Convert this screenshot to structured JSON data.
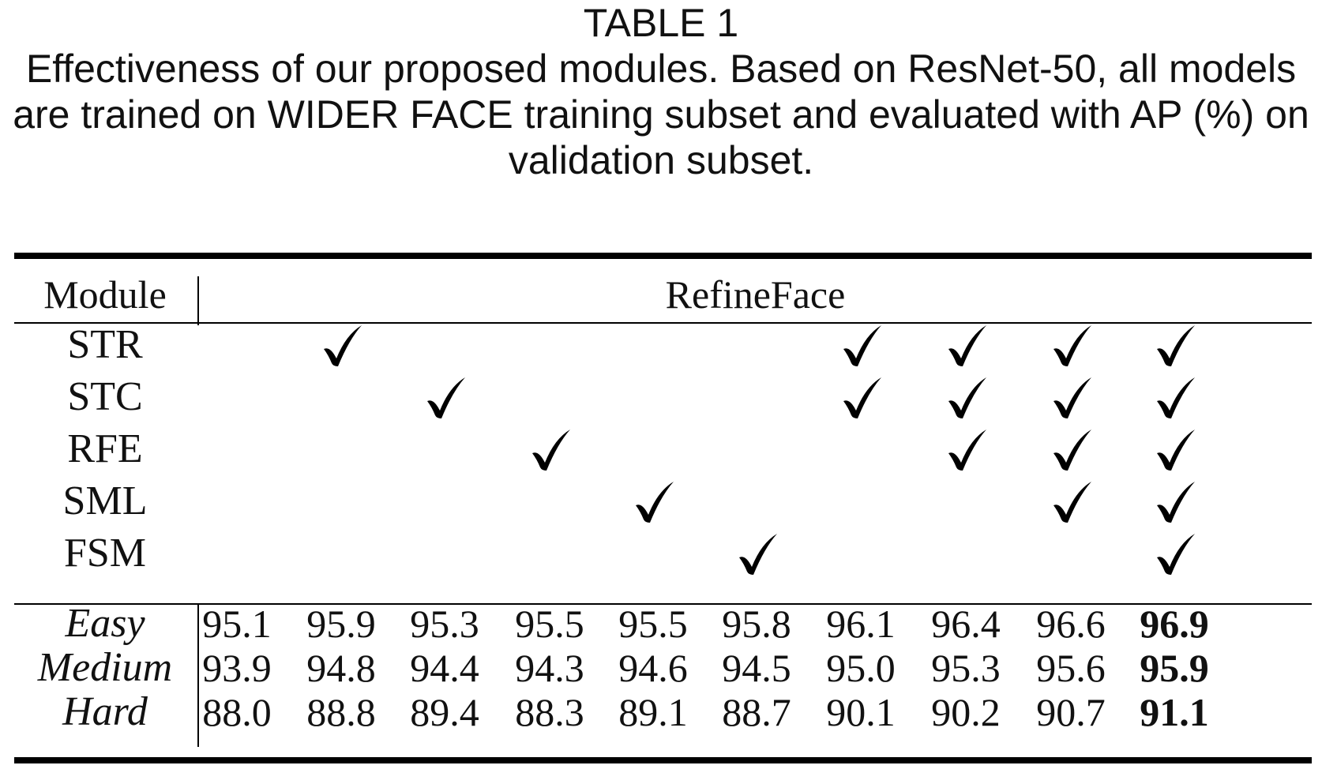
{
  "caption": {
    "label": "TABLE 1",
    "text": "Effectiveness of our proposed modules. Based on ResNet-50, all models are trained on WIDER FACE training subset and evaluated with AP (%) on validation subset."
  },
  "table": {
    "header": {
      "module": "Module",
      "group": "RefineFace"
    },
    "check_symbol": "checkmark-icon",
    "modules": [
      {
        "name": "STR",
        "checks": [
          false,
          true,
          false,
          false,
          false,
          false,
          true,
          true,
          true,
          true
        ]
      },
      {
        "name": "STC",
        "checks": [
          false,
          false,
          true,
          false,
          false,
          false,
          true,
          true,
          true,
          true
        ]
      },
      {
        "name": "RFE",
        "checks": [
          false,
          false,
          false,
          true,
          false,
          false,
          false,
          true,
          true,
          true
        ]
      },
      {
        "name": "SML",
        "checks": [
          false,
          false,
          false,
          false,
          true,
          false,
          false,
          false,
          true,
          true
        ]
      },
      {
        "name": "FSM",
        "checks": [
          false,
          false,
          false,
          false,
          false,
          true,
          false,
          false,
          false,
          true
        ]
      }
    ],
    "metrics": [
      {
        "name": "Easy",
        "values": [
          "95.1",
          "95.9",
          "95.3",
          "95.5",
          "95.5",
          "95.8",
          "96.1",
          "96.4",
          "96.6",
          "96.9"
        ]
      },
      {
        "name": "Medium",
        "values": [
          "93.9",
          "94.8",
          "94.4",
          "94.3",
          "94.6",
          "94.5",
          "95.0",
          "95.3",
          "95.6",
          "95.9"
        ]
      },
      {
        "name": "Hard",
        "values": [
          "88.0",
          "88.8",
          "89.4",
          "88.3",
          "89.1",
          "88.7",
          "90.1",
          "90.2",
          "90.7",
          "91.1"
        ]
      }
    ],
    "best_column": 9
  }
}
